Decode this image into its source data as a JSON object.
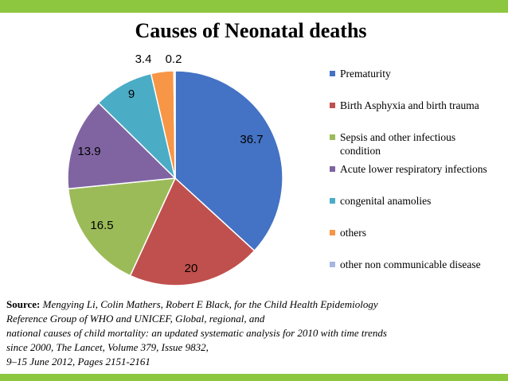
{
  "colors": {
    "bar": "#8DC63F",
    "slices": [
      "#4472C4",
      "#C0504D",
      "#9BBB59",
      "#8064A2",
      "#4BACC6",
      "#F79646",
      "#A5B7E0"
    ]
  },
  "chart_data": {
    "type": "pie",
    "title": "Causes of Neonatal deaths",
    "categories": [
      "Prematurity",
      "Birth Asphyxia and birth trauma",
      "Sepsis and other infectious condition",
      "Acute lower respiratory infections",
      "congenital anamolies",
      "others",
      "other non communicable disease"
    ],
    "values": [
      36.7,
      20,
      16.5,
      13.9,
      9,
      3.4,
      0.2
    ],
    "data_labels": [
      "36.7",
      "20",
      "16.5",
      "13.9",
      "9",
      "3.4",
      "0.2"
    ],
    "legend": "right"
  },
  "source": {
    "label": "Source:",
    "citation": "Mengying Li, Colin Mathers, Robert E Black, for the Child Health Epidemiology\nReference Group of WHO and UNICEF, Global, regional, and\nnational causes of child mortality: an updated systematic analysis for 2010 with time trends\nsince 2000, The Lancet, Volume 379, Issue 9832,\n9–15 June 2012, Pages 2151-2161"
  }
}
